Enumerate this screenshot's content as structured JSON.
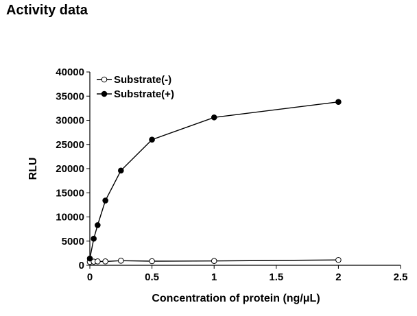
{
  "page_title": "Activity data",
  "chart_data": {
    "type": "line",
    "xlabel": "Concentration of protein (ng/μL)",
    "ylabel": "RLU",
    "xlim": [
      0,
      2.5
    ],
    "ylim": [
      0,
      40000
    ],
    "xticks": [
      0,
      0.5,
      1,
      1.5,
      2,
      2.5
    ],
    "yticks": [
      0,
      5000,
      10000,
      15000,
      20000,
      25000,
      30000,
      35000,
      40000
    ],
    "grid": false,
    "legend_position": "top-left",
    "series": [
      {
        "name": "Substrate(-)",
        "marker": "open-circle",
        "x": [
          0,
          0.03125,
          0.0625,
          0.125,
          0.25,
          0.5,
          1,
          2
        ],
        "y": [
          700,
          750,
          800,
          800,
          950,
          850,
          900,
          1100
        ]
      },
      {
        "name": "Substrate(+)",
        "marker": "filled-circle",
        "x": [
          0,
          0.03125,
          0.0625,
          0.125,
          0.25,
          0.5,
          1,
          2
        ],
        "y": [
          1400,
          5500,
          8300,
          13400,
          19600,
          26000,
          30600,
          33800
        ]
      }
    ]
  }
}
